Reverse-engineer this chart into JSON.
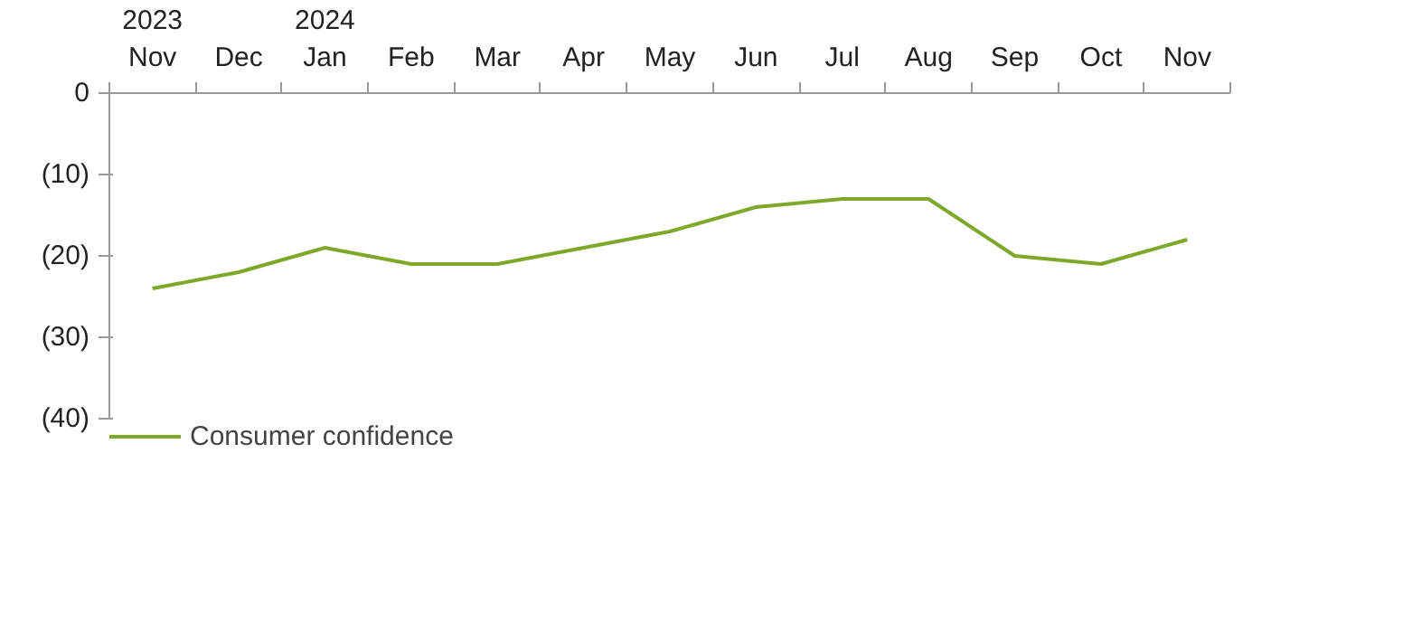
{
  "chart_data": {
    "type": "line",
    "categories": [
      "2023 Nov",
      "Dec",
      "2024 Jan",
      "Feb",
      "Mar",
      "Apr",
      "May",
      "Jun",
      "Jul",
      "Aug",
      "Sep",
      "Oct",
      "Nov"
    ],
    "series": [
      {
        "name": "Consumer confidence",
        "color": "#7fa82a",
        "values": [
          -24,
          -22,
          -19,
          -21,
          -21,
          -19,
          -17,
          -14,
          -13,
          -13,
          -20,
          -21,
          -18
        ]
      }
    ],
    "ylim": [
      -40,
      0
    ],
    "yticks": [
      {
        "value": 0,
        "label": "0"
      },
      {
        "value": -10,
        "label": "(10)"
      },
      {
        "value": -20,
        "label": "(20)"
      },
      {
        "value": -30,
        "label": "(30)"
      },
      {
        "value": -40,
        "label": "(40)"
      }
    ],
    "grid": false,
    "legend": "bottom left",
    "marker": "none",
    "line_style": "solid"
  }
}
